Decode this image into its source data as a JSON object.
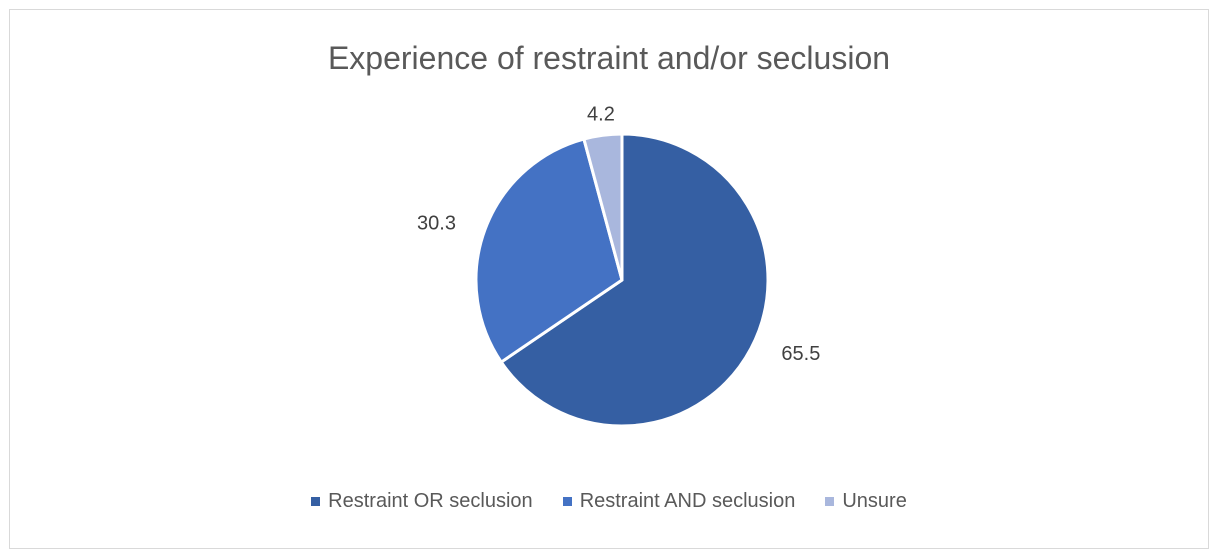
{
  "chart_data": {
    "type": "pie",
    "title": "Experience of restraint and/or seclusion",
    "categories": [
      "Restraint OR seclusion",
      "Restraint AND seclusion",
      "Unsure"
    ],
    "values": [
      65.5,
      30.3,
      4.2
    ],
    "value_labels": [
      "65.5",
      "30.3",
      "4.2"
    ],
    "colors": [
      "#355fa3",
      "#4472c4",
      "#a9b7dd"
    ],
    "legend_position": "bottom",
    "start_angle": "top, clockwise"
  }
}
